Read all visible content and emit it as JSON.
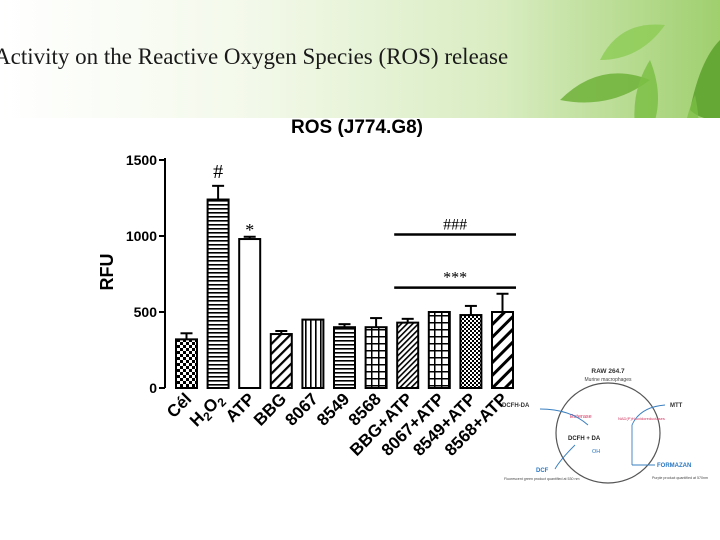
{
  "slide": {
    "title": "Activity on the Reactive Oxygen Species (ROS) release"
  },
  "chart_data": {
    "type": "bar",
    "title": "ROS (J774.G8)",
    "ylabel": "RFU",
    "xlabel": "",
    "ylim": [
      0,
      1500
    ],
    "yticks": [
      0,
      500,
      1000,
      1500
    ],
    "categories": [
      "Cél",
      "H2O2",
      "ATP",
      "BBG",
      "8067",
      "8549",
      "8568",
      "BBG+ATP",
      "8067+ATP",
      "8549+ATP",
      "8568+ATP"
    ],
    "values": [
      320,
      1240,
      980,
      355,
      450,
      400,
      400,
      430,
      500,
      480,
      500
    ],
    "errors": [
      40,
      90,
      15,
      20,
      0,
      20,
      60,
      25,
      0,
      60,
      120
    ],
    "patterns": [
      "checker",
      "hstripe",
      "white",
      "diag",
      "vstripe",
      "hstripe",
      "grid",
      "diag-dense",
      "grid",
      "checker-fine",
      "diag-wide"
    ],
    "annotations": [
      {
        "text": "#",
        "category": "H2O2"
      },
      {
        "text": "*",
        "category": "ATP"
      },
      {
        "text": "###",
        "from": "BBG+ATP",
        "to": "8568+ATP",
        "level": 1010
      },
      {
        "text": "***",
        "from": "BBG+ATP",
        "to": "8568+ATP",
        "level": 660
      }
    ]
  },
  "diagram": {
    "cell": "RAW 264.7",
    "cell_sub": "Murine macrophages",
    "dcfh_da": "DCFH-DA",
    "mtt": "MTT",
    "esterase": "Esterase",
    "nadph": "NAD(P)H oxidoreductases",
    "dcfh": "DCFH + DA",
    "oh": "OH",
    "dcf": "DCF",
    "dcf_note": "Fluorescent green product quantified at 530 nm",
    "formazan": "FORMAZAN",
    "formazan_note": "Purple product quantified at 570nm"
  }
}
